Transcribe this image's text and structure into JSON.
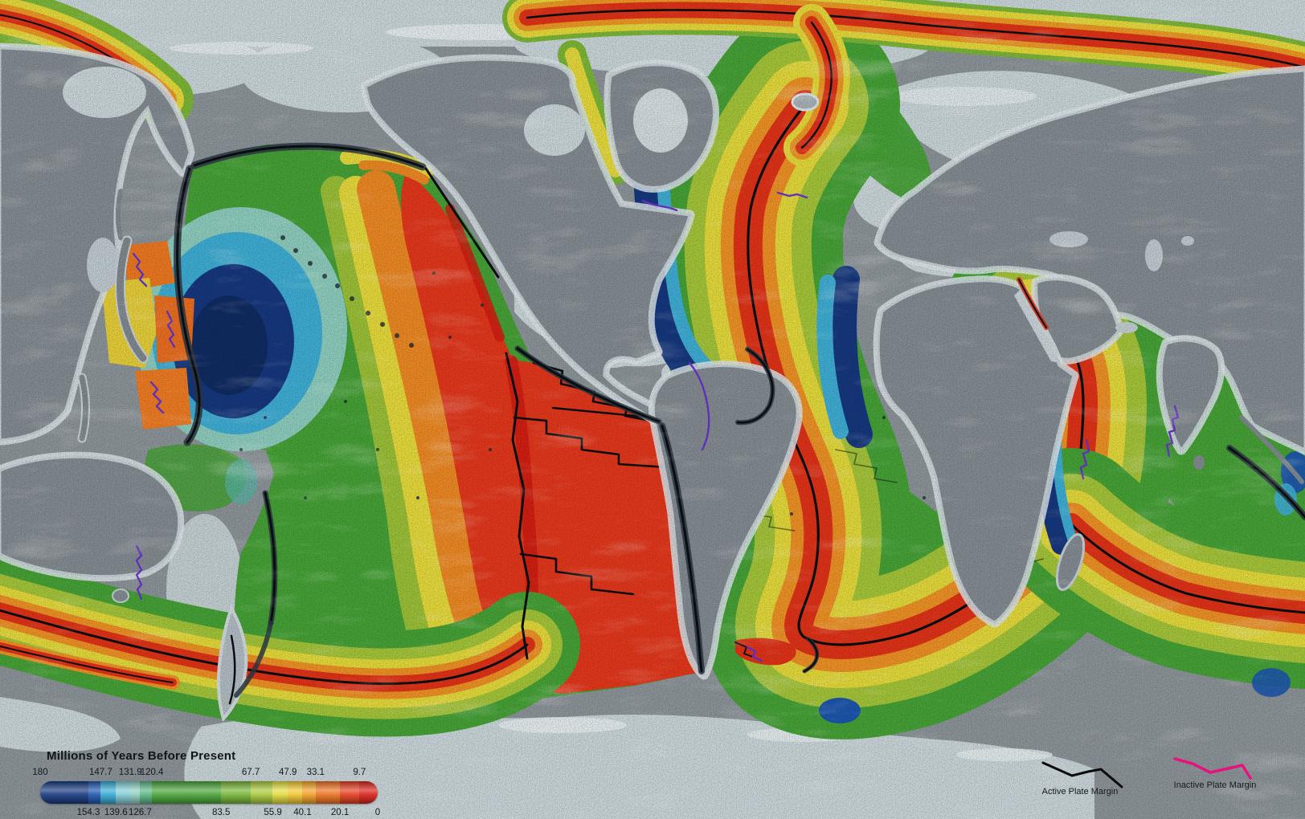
{
  "title": "Millions of Years Before Present",
  "colorbar": {
    "min": 0,
    "max": 180,
    "segments": [
      {
        "from": 180,
        "to": 154.3,
        "color": "#16387f"
      },
      {
        "from": 154.3,
        "to": 147.7,
        "color": "#1d56ae"
      },
      {
        "from": 147.7,
        "to": 139.6,
        "color": "#35a9d5"
      },
      {
        "from": 139.6,
        "to": 131.9,
        "color": "#82ccd7"
      },
      {
        "from": 131.9,
        "to": 126.7,
        "color": "#8fcfc0"
      },
      {
        "from": 126.7,
        "to": 120.4,
        "color": "#5bb684"
      },
      {
        "from": 120.4,
        "to": 83.5,
        "color": "#47a337"
      },
      {
        "from": 83.5,
        "to": 67.7,
        "color": "#76b335"
      },
      {
        "from": 67.7,
        "to": 55.9,
        "color": "#a8c93a"
      },
      {
        "from": 55.9,
        "to": 47.9,
        "color": "#e3dc3d"
      },
      {
        "from": 47.9,
        "to": 40.1,
        "color": "#f2c730"
      },
      {
        "from": 40.1,
        "to": 33.1,
        "color": "#f1a026"
      },
      {
        "from": 33.1,
        "to": 20.1,
        "color": "#ec7120"
      },
      {
        "from": 20.1,
        "to": 9.7,
        "color": "#e43d1e"
      },
      {
        "from": 9.7,
        "to": 0,
        "color": "#d92017"
      }
    ],
    "ticks_top": [
      "180",
      "147.7",
      "131.9",
      "120.4",
      "67.7",
      "47.9",
      "33.1",
      "9.7"
    ],
    "ticks_bottom": [
      "154.3",
      "139.6",
      "126.7",
      "83.5",
      "55.9",
      "40.1",
      "20.1",
      "0"
    ]
  },
  "legend": {
    "active_label": "Active Plate Margin",
    "active_color": "#0b0b0b",
    "inactive_label": "Inactive Plate Margin",
    "inactive_color": "#e8127c"
  },
  "map_colors": {
    "land": "#858d93",
    "shelf": "#ccd8dc",
    "background": "#8e969b",
    "trench": "#2b3844",
    "inactive_margin_on_map": "#6a35cc"
  }
}
